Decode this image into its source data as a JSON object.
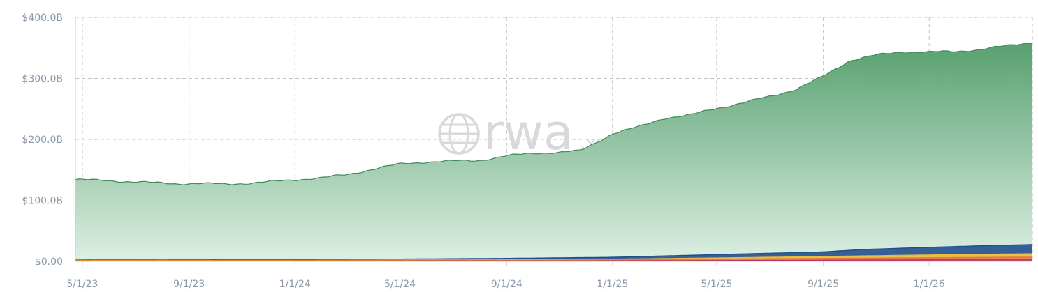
{
  "chart_data": {
    "type": "area",
    "stacked": true,
    "y_unit": "USD billions",
    "x_ticks": [
      "5/1/23",
      "9/1/23",
      "1/1/24",
      "5/1/24",
      "9/1/24",
      "1/1/25",
      "5/1/25",
      "9/1/25",
      "1/1/26"
    ],
    "y_ticks": [
      "$0.00",
      "$100.0B",
      "$200.0B",
      "$300.0B",
      "$400.0B"
    ],
    "ylim": [
      0,
      400
    ],
    "xlim": [
      "2023-04-23",
      "2026-04-30"
    ],
    "grid": true,
    "watermark": {
      "main": "rwa",
      "suffix": ".xyz"
    },
    "series": [
      {
        "color": "#6aa97e",
        "x": [
          "2023-04-23",
          "2023-06-01",
          "2023-07-15",
          "2023-08-15",
          "2023-09-15",
          "2023-10-15",
          "2023-11-15",
          "2023-12-15",
          "2024-01-01",
          "2024-02-01",
          "2024-03-01",
          "2024-04-01",
          "2024-05-01",
          "2024-06-01",
          "2024-07-01",
          "2024-08-01",
          "2024-09-01",
          "2024-10-01",
          "2024-11-01",
          "2024-11-25",
          "2024-12-15",
          "2025-01-01",
          "2025-02-01",
          "2025-03-01",
          "2025-04-01",
          "2025-05-01",
          "2025-06-01",
          "2025-07-01",
          "2025-08-01",
          "2025-09-01",
          "2025-10-01",
          "2025-11-01",
          "2025-12-01",
          "2026-01-01",
          "2026-02-01",
          "2026-03-01",
          "2026-04-01",
          "2026-04-30"
        ],
        "values": [
          132,
          130,
          127,
          125,
          125,
          124,
          126,
          129,
          131,
          134,
          139,
          148,
          156,
          159,
          160,
          161,
          168,
          172,
          173,
          175,
          190,
          203,
          213,
          226,
          230,
          240,
          248,
          257,
          268,
          288,
          311,
          318,
          322,
          320,
          320,
          322,
          327,
          332
        ]
      },
      {
        "color": "#1f4e8c",
        "x": [
          "2023-04-23",
          "2023-09-01",
          "2024-01-01",
          "2024-05-01",
          "2024-09-01",
          "2025-01-01",
          "2025-05-01",
          "2025-09-01",
          "2025-10-15",
          "2026-01-01",
          "2026-03-01",
          "2026-04-30"
        ],
        "values": [
          0.8,
          0.9,
          1.0,
          1.6,
          2.3,
          3.1,
          5.5,
          7.5,
          10.5,
          12.5,
          14.0,
          15.0
        ]
      },
      {
        "color": "#e8b93d",
        "x": [
          "2023-04-23",
          "2024-01-01",
          "2024-09-01",
          "2025-01-01",
          "2025-05-01",
          "2025-09-01",
          "2026-01-01",
          "2026-04-30"
        ],
        "values": [
          0.5,
          0.6,
          0.9,
          1.2,
          2.0,
          3.2,
          4.5,
          5.5
        ]
      },
      {
        "color": "#e07a3a",
        "x": [
          "2023-04-23",
          "2024-01-01",
          "2024-09-01",
          "2025-01-01",
          "2025-05-01",
          "2025-09-01",
          "2026-01-01",
          "2026-04-30"
        ],
        "values": [
          0.6,
          0.8,
          1.1,
          1.5,
          2.2,
          2.8,
          3.4,
          4.0
        ]
      },
      {
        "color": "#c0356b",
        "x": [
          "2023-04-23",
          "2024-01-01",
          "2024-09-01",
          "2025-01-01",
          "2025-05-01",
          "2025-09-01",
          "2026-01-01",
          "2026-04-30"
        ],
        "values": [
          0.3,
          0.4,
          0.6,
          0.9,
          1.4,
          2.0,
          2.6,
          3.0
        ]
      }
    ]
  }
}
